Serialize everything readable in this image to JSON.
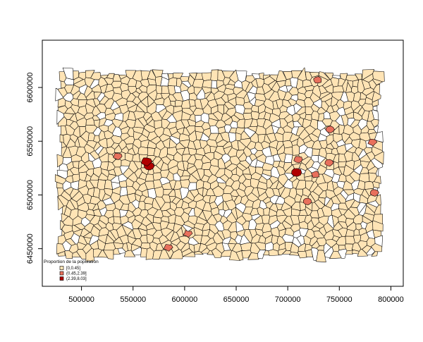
{
  "chart_data": {
    "type": "choropleth",
    "x_axis": {
      "ticks": [
        500000,
        550000,
        600000,
        650000,
        700000,
        750000,
        800000
      ],
      "range": [
        462000,
        812000
      ]
    },
    "y_axis": {
      "ticks": [
        6450000,
        6500000,
        6550000,
        6600000
      ],
      "range": [
        6415000,
        6644000
      ]
    },
    "legend": {
      "title": "Proportion de la population",
      "placement": "bottom-left",
      "classes": [
        {
          "label": "[0,0.45]",
          "color": "#FFE4B5"
        },
        {
          "label": "(0.45,2.39]",
          "color": "#E8705C"
        },
        {
          "label": "(2.39,8.03]",
          "color": "#B00000"
        }
      ]
    },
    "highlighted_communes": [
      {
        "x": 565500,
        "y": 6527000,
        "class": 2
      },
      {
        "x": 708500,
        "y": 6521000,
        "class": 2
      },
      {
        "x": 563000,
        "y": 6531000,
        "class": 2
      },
      {
        "x": 535000,
        "y": 6536000,
        "class": 1
      },
      {
        "x": 584000,
        "y": 6451000,
        "class": 1
      },
      {
        "x": 603000,
        "y": 6464000,
        "class": 1
      },
      {
        "x": 729000,
        "y": 6607000,
        "class": 1
      },
      {
        "x": 741000,
        "y": 6561000,
        "class": 1
      },
      {
        "x": 740000,
        "y": 6530000,
        "class": 1
      },
      {
        "x": 710000,
        "y": 6533000,
        "class": 1
      },
      {
        "x": 782000,
        "y": 6549000,
        "class": 1
      },
      {
        "x": 784000,
        "y": 6502000,
        "class": 1
      },
      {
        "x": 719000,
        "y": 6494000,
        "class": 1
      },
      {
        "x": 727000,
        "y": 6519000,
        "class": 1
      }
    ],
    "map_extent": {
      "x": [
        478000,
        790000
      ],
      "y": [
        6442000,
        6614000
      ]
    },
    "commune_count": 1280,
    "empty_fraction": 0.13
  }
}
